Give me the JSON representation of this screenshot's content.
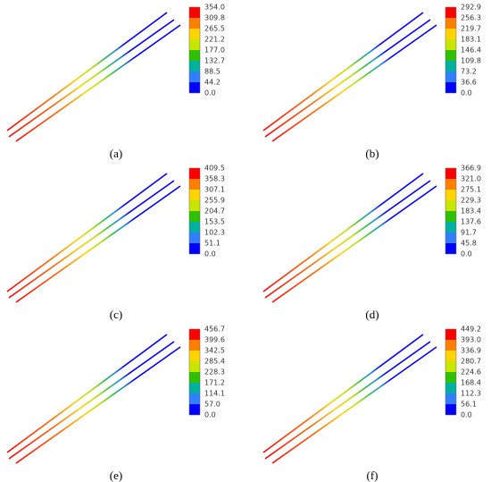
{
  "panels": [
    {
      "label": "(a)",
      "colorbar": [
        "354.0",
        "309.8",
        "265.5",
        "221.2",
        "177.0",
        "132.7",
        "88.5",
        "44.2",
        "0.0"
      ]
    },
    {
      "label": "(b)",
      "colorbar": [
        "292.9",
        "256.3",
        "219.7",
        "183.1",
        "146.4",
        "109.8",
        "73.2",
        "36.6",
        "0.0"
      ]
    },
    {
      "label": "(c)",
      "colorbar": [
        "409.5",
        "358.3",
        "307.1",
        "255.9",
        "204.7",
        "153.5",
        "102.3",
        "51.1",
        "0.0"
      ]
    },
    {
      "label": "(d)",
      "colorbar": [
        "366.9",
        "321.0",
        "275.1",
        "229.3",
        "183.4",
        "137.6",
        "91.7",
        "45.8",
        "0.0"
      ]
    },
    {
      "label": "(e)",
      "colorbar": [
        "456.7",
        "399.6",
        "342.5",
        "285.4",
        "228.3",
        "171.2",
        "114.1",
        "57.0",
        "0.0"
      ]
    },
    {
      "label": "(f)",
      "colorbar": [
        "449.2",
        "393.0",
        "336.9",
        "280.7",
        "224.6",
        "168.4",
        "112.3",
        "56.1",
        "0.0"
      ]
    }
  ]
}
